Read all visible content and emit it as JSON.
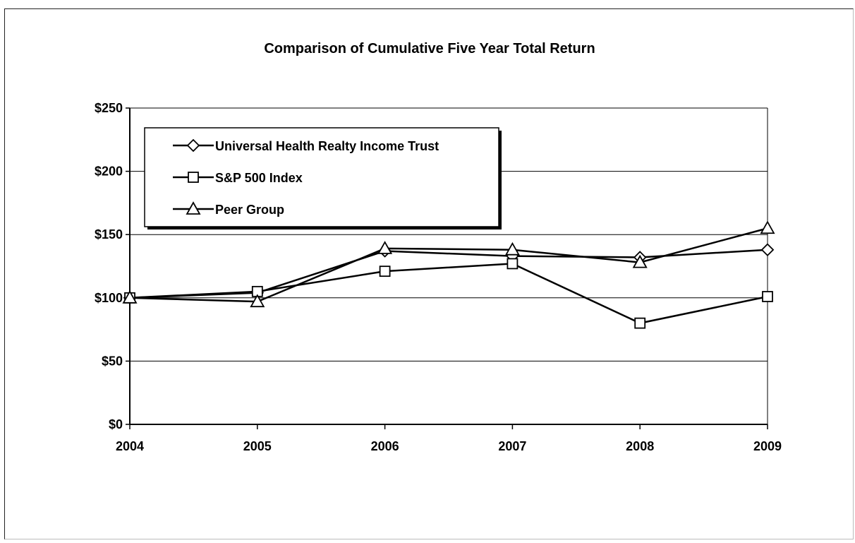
{
  "chart_data": {
    "type": "line",
    "title": "Comparison of Cumulative Five Year Total Return",
    "xlabel": "",
    "ylabel": "",
    "categories": [
      "2004",
      "2005",
      "2006",
      "2007",
      "2008",
      "2009"
    ],
    "yticks": [
      "$0",
      "$50",
      "$100",
      "$150",
      "$200",
      "$250"
    ],
    "ylim": [
      0,
      250
    ],
    "grid": true,
    "legend_position": "top-left",
    "series": [
      {
        "name": "Universal Health Realty Income Trust",
        "marker": "diamond",
        "values": [
          100,
          104,
          137,
          133,
          132,
          138
        ]
      },
      {
        "name": "S&P 500 Index",
        "marker": "square",
        "values": [
          100,
          105,
          121,
          127,
          80,
          101
        ]
      },
      {
        "name": "Peer Group",
        "marker": "triangle",
        "values": [
          100,
          97,
          139,
          138,
          128,
          155
        ]
      }
    ]
  }
}
